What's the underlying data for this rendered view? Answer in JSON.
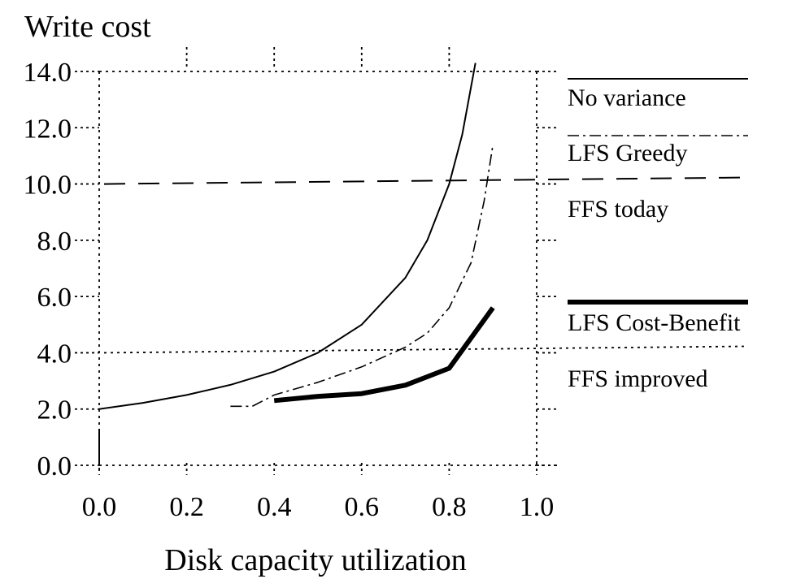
{
  "chart_data": {
    "type": "line",
    "ylabel": "Write cost",
    "xlabel": "Disk capacity utilization",
    "xlim": [
      0.0,
      1.0
    ],
    "ylim": [
      0.0,
      14.0
    ],
    "x_ticks": [
      "0.0",
      "0.2",
      "0.4",
      "0.6",
      "0.8",
      "1.0"
    ],
    "y_ticks": [
      "0.0",
      "2.0",
      "4.0",
      "6.0",
      "8.0",
      "10.0",
      "12.0",
      "14.0"
    ],
    "grid": false,
    "series": [
      {
        "name": "No variance",
        "style": "solid-thin",
        "x": [
          0.0,
          0.1,
          0.2,
          0.3,
          0.4,
          0.5,
          0.6,
          0.7,
          0.75,
          0.8,
          0.83,
          0.86
        ],
        "y": [
          2.0,
          2.22,
          2.5,
          2.86,
          3.33,
          4.0,
          5.0,
          6.67,
          8.0,
          10.0,
          11.76,
          14.3
        ]
      },
      {
        "name": "LFS Greedy",
        "style": "dash-dot",
        "x": [
          0.3,
          0.35,
          0.4,
          0.5,
          0.6,
          0.7,
          0.75,
          0.8,
          0.85,
          0.88,
          0.9
        ],
        "y": [
          2.1,
          2.1,
          2.5,
          2.95,
          3.5,
          4.2,
          4.7,
          5.6,
          7.2,
          9.4,
          11.4
        ]
      },
      {
        "name": "LFS Cost-Benefit",
        "style": "solid-thick",
        "x": [
          0.4,
          0.5,
          0.6,
          0.7,
          0.8,
          0.9
        ],
        "y": [
          2.3,
          2.45,
          2.55,
          2.85,
          3.45,
          5.6
        ]
      }
    ],
    "reference_lines": [
      {
        "name": "FFS today",
        "y": 10.0,
        "style": "dashed"
      },
      {
        "name": "FFS improved",
        "y": 4.0,
        "style": "dotted"
      }
    ],
    "legend_placement": "right"
  }
}
